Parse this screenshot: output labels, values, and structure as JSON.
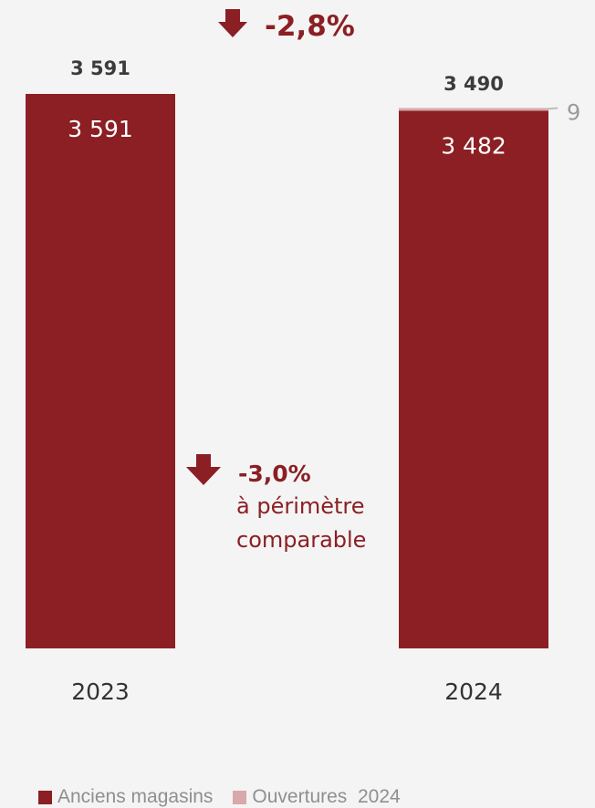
{
  "chart_data": {
    "type": "bar",
    "stacked": true,
    "categories": [
      "2023",
      "2024"
    ],
    "series": [
      {
        "name": "Anciens magasins",
        "values": [
          3591,
          3482
        ],
        "value_labels": [
          "3 591",
          "3 482"
        ],
        "color": "#8b1f24"
      },
      {
        "name": "Ouvertures  2024",
        "values": [
          0,
          9
        ],
        "value_labels": [
          "",
          "9"
        ],
        "color": "#d8a9ab"
      }
    ],
    "totals": [
      3591,
      3490
    ],
    "total_labels": [
      "3 591",
      "3 490"
    ],
    "ylim": [
      0,
      3700
    ],
    "grid": false,
    "legend_position": "bottom",
    "annotations": [
      {
        "id": "overall-change",
        "icon": "arrow-down-icon",
        "value": "-2,8%",
        "text": ""
      },
      {
        "id": "like-for-like-change",
        "icon": "arrow-down-icon",
        "value": "-3,0%",
        "text_lines": [
          "à périmètre",
          "comparable"
        ]
      }
    ]
  },
  "colors": {
    "accent": "#8b1f24",
    "bar_label": "#ffffff",
    "total_label": "#3b3b3b",
    "muted": "#9a9a9a",
    "background": "#f4f4f4"
  }
}
